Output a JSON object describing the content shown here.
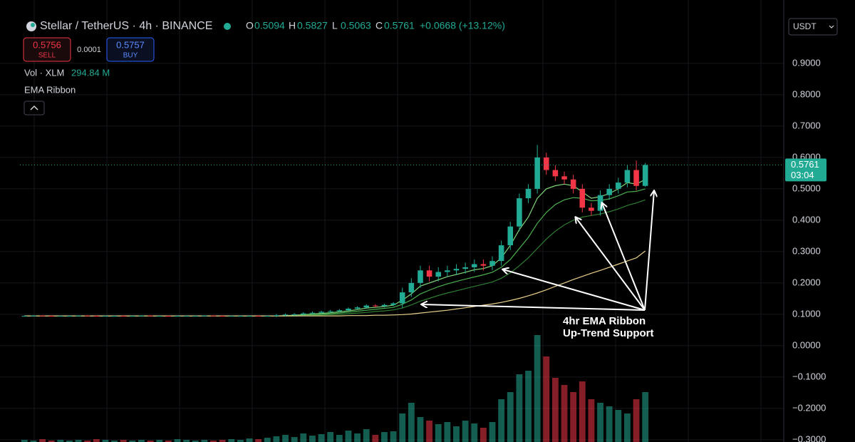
{
  "chart_data": {
    "type": "candlestick",
    "title": "Stellar / TetherUS · 4h · BINANCE",
    "ohlc_header": [
      {
        "label": "O",
        "value": 0.5094
      },
      {
        "label": "H",
        "value": 0.5827
      },
      {
        "label": "L",
        "value": 0.5063
      },
      {
        "label": "C",
        "value": 0.5761
      }
    ],
    "change": "+0.0668 (+13.12%)",
    "sell": {
      "price": 0.5756,
      "label": "SELL"
    },
    "spread": 0.0001,
    "buy": {
      "price": 0.5757,
      "label": "BUY"
    },
    "volume_name": "Vol · XLM",
    "volume_label": "294.84 M",
    "currency": "USDT",
    "countdown": "03:04",
    "up_color": "#22ab94",
    "down_color": "#f23645",
    "open": [
      0.095,
      0.095,
      0.096,
      0.095,
      0.094,
      0.095,
      0.095,
      0.096,
      0.095,
      0.094,
      0.095,
      0.095,
      0.094,
      0.095,
      0.096,
      0.095,
      0.095,
      0.094,
      0.095,
      0.095,
      0.095,
      0.096,
      0.095,
      0.094,
      0.095,
      0.095,
      0.095,
      0.094,
      0.095,
      0.097,
      0.099,
      0.1,
      0.103,
      0.105,
      0.108,
      0.11,
      0.113,
      0.118,
      0.122,
      0.128,
      0.126,
      0.13,
      0.135,
      0.17,
      0.2,
      0.24,
      0.22,
      0.235,
      0.24,
      0.245,
      0.25,
      0.26,
      0.255,
      0.27,
      0.32,
      0.38,
      0.47,
      0.5,
      0.6,
      0.56,
      0.54,
      0.53,
      0.5,
      0.44,
      0.43,
      0.48,
      0.5,
      0.52,
      0.56,
      0.5094
    ],
    "high": [
      0.096,
      0.097,
      0.097,
      0.096,
      0.096,
      0.096,
      0.097,
      0.097,
      0.096,
      0.096,
      0.096,
      0.096,
      0.096,
      0.097,
      0.097,
      0.096,
      0.096,
      0.096,
      0.096,
      0.096,
      0.097,
      0.097,
      0.096,
      0.096,
      0.096,
      0.096,
      0.096,
      0.096,
      0.101,
      0.103,
      0.104,
      0.107,
      0.109,
      0.112,
      0.114,
      0.117,
      0.122,
      0.126,
      0.132,
      0.132,
      0.134,
      0.139,
      0.185,
      0.215,
      0.255,
      0.255,
      0.25,
      0.255,
      0.26,
      0.265,
      0.275,
      0.275,
      0.285,
      0.335,
      0.395,
      0.485,
      0.515,
      0.64,
      0.615,
      0.575,
      0.555,
      0.545,
      0.515,
      0.455,
      0.495,
      0.515,
      0.535,
      0.575,
      0.59,
      0.5827
    ],
    "low": [
      0.094,
      0.094,
      0.094,
      0.093,
      0.093,
      0.094,
      0.094,
      0.094,
      0.093,
      0.093,
      0.094,
      0.093,
      0.093,
      0.094,
      0.094,
      0.094,
      0.093,
      0.093,
      0.094,
      0.094,
      0.094,
      0.094,
      0.093,
      0.093,
      0.094,
      0.094,
      0.093,
      0.093,
      0.091,
      0.093,
      0.095,
      0.096,
      0.099,
      0.101,
      0.104,
      0.106,
      0.109,
      0.114,
      0.118,
      0.122,
      0.122,
      0.126,
      0.12,
      0.155,
      0.185,
      0.205,
      0.205,
      0.22,
      0.225,
      0.23,
      0.235,
      0.24,
      0.24,
      0.255,
      0.305,
      0.365,
      0.455,
      0.485,
      0.545,
      0.525,
      0.515,
      0.485,
      0.425,
      0.415,
      0.415,
      0.465,
      0.485,
      0.505,
      0.495,
      0.5063
    ],
    "close": [
      0.095,
      0.096,
      0.095,
      0.094,
      0.095,
      0.095,
      0.096,
      0.095,
      0.094,
      0.095,
      0.095,
      0.094,
      0.095,
      0.096,
      0.095,
      0.095,
      0.094,
      0.095,
      0.095,
      0.095,
      0.096,
      0.095,
      0.094,
      0.095,
      0.095,
      0.095,
      0.094,
      0.095,
      0.097,
      0.099,
      0.1,
      0.103,
      0.105,
      0.108,
      0.11,
      0.113,
      0.118,
      0.122,
      0.128,
      0.126,
      0.13,
      0.135,
      0.17,
      0.2,
      0.24,
      0.22,
      0.235,
      0.24,
      0.245,
      0.25,
      0.26,
      0.255,
      0.27,
      0.32,
      0.38,
      0.47,
      0.5,
      0.6,
      0.56,
      0.54,
      0.53,
      0.5,
      0.44,
      0.43,
      0.48,
      0.5,
      0.52,
      0.56,
      0.5094,
      0.5761
    ],
    "volume": [
      3,
      2,
      4,
      2,
      3,
      2,
      3,
      2,
      4,
      3,
      2,
      3,
      2,
      3,
      2,
      3,
      2,
      4,
      3,
      2,
      3,
      2,
      3,
      4,
      3,
      5,
      4,
      6,
      8,
      10,
      7,
      12,
      9,
      11,
      14,
      10,
      16,
      12,
      18,
      10,
      14,
      15,
      40,
      55,
      35,
      30,
      25,
      28,
      22,
      30,
      26,
      20,
      28,
      60,
      70,
      95,
      100,
      150,
      120,
      90,
      80,
      70,
      85,
      60,
      55,
      50,
      45,
      40,
      60,
      70
    ],
    "ema_ribbon": {
      "name": "EMA Ribbon",
      "lines": [
        {
          "color": "#7fd67a",
          "values": [
            0.095,
            0.095,
            0.095,
            0.095,
            0.095,
            0.095,
            0.095,
            0.095,
            0.095,
            0.095,
            0.095,
            0.095,
            0.095,
            0.095,
            0.095,
            0.095,
            0.095,
            0.095,
            0.095,
            0.095,
            0.095,
            0.095,
            0.095,
            0.095,
            0.095,
            0.095,
            0.095,
            0.095,
            0.095,
            0.096,
            0.097,
            0.099,
            0.101,
            0.103,
            0.105,
            0.108,
            0.111,
            0.115,
            0.12,
            0.122,
            0.125,
            0.129,
            0.145,
            0.165,
            0.19,
            0.2,
            0.21,
            0.22,
            0.227,
            0.234,
            0.242,
            0.246,
            0.255,
            0.28,
            0.32,
            0.37,
            0.41,
            0.47,
            0.5,
            0.51,
            0.515,
            0.51,
            0.49,
            0.47,
            0.475,
            0.485,
            0.5,
            0.52,
            0.515,
            0.53
          ]
        },
        {
          "color": "#4caf50",
          "values": [
            0.095,
            0.095,
            0.095,
            0.095,
            0.095,
            0.095,
            0.095,
            0.095,
            0.095,
            0.095,
            0.095,
            0.095,
            0.095,
            0.095,
            0.095,
            0.095,
            0.095,
            0.095,
            0.095,
            0.095,
            0.095,
            0.095,
            0.095,
            0.095,
            0.095,
            0.095,
            0.095,
            0.095,
            0.095,
            0.095,
            0.096,
            0.097,
            0.099,
            0.1,
            0.102,
            0.104,
            0.107,
            0.11,
            0.113,
            0.116,
            0.119,
            0.122,
            0.132,
            0.146,
            0.165,
            0.177,
            0.188,
            0.197,
            0.205,
            0.212,
            0.219,
            0.226,
            0.234,
            0.25,
            0.275,
            0.31,
            0.345,
            0.39,
            0.425,
            0.45,
            0.465,
            0.472,
            0.47,
            0.462,
            0.463,
            0.468,
            0.478,
            0.49,
            0.492,
            0.5
          ]
        },
        {
          "color": "#2e7d32",
          "values": [
            0.095,
            0.095,
            0.095,
            0.095,
            0.095,
            0.095,
            0.095,
            0.095,
            0.095,
            0.095,
            0.095,
            0.095,
            0.095,
            0.095,
            0.095,
            0.095,
            0.095,
            0.095,
            0.095,
            0.095,
            0.095,
            0.095,
            0.095,
            0.095,
            0.095,
            0.095,
            0.095,
            0.095,
            0.095,
            0.095,
            0.095,
            0.096,
            0.097,
            0.098,
            0.099,
            0.1,
            0.102,
            0.104,
            0.106,
            0.109,
            0.111,
            0.114,
            0.12,
            0.13,
            0.142,
            0.151,
            0.16,
            0.168,
            0.175,
            0.182,
            0.189,
            0.196,
            0.203,
            0.215,
            0.232,
            0.255,
            0.28,
            0.31,
            0.34,
            0.365,
            0.385,
            0.4,
            0.41,
            0.415,
            0.42,
            0.427,
            0.436,
            0.447,
            0.455,
            0.465
          ]
        },
        {
          "color": "#e8cf8a",
          "values": [
            0.095,
            0.095,
            0.095,
            0.095,
            0.095,
            0.095,
            0.095,
            0.095,
            0.095,
            0.095,
            0.095,
            0.095,
            0.095,
            0.095,
            0.095,
            0.095,
            0.095,
            0.095,
            0.095,
            0.095,
            0.095,
            0.095,
            0.095,
            0.095,
            0.095,
            0.095,
            0.095,
            0.095,
            0.095,
            0.095,
            0.095,
            0.095,
            0.095,
            0.095,
            0.095,
            0.095,
            0.096,
            0.096,
            0.096,
            0.097,
            0.097,
            0.098,
            0.099,
            0.101,
            0.104,
            0.107,
            0.11,
            0.113,
            0.117,
            0.121,
            0.125,
            0.129,
            0.133,
            0.138,
            0.144,
            0.151,
            0.159,
            0.168,
            0.178,
            0.189,
            0.2,
            0.211,
            0.221,
            0.231,
            0.24,
            0.25,
            0.26,
            0.27,
            0.28,
            0.302
          ]
        }
      ]
    },
    "ylim": [
      -0.307,
      1.102
    ],
    "yticks": [
      {
        "value": 0.9,
        "label": "0.9000"
      },
      {
        "value": 0.8,
        "label": "0.8000"
      },
      {
        "value": 0.7,
        "label": "0.7000"
      },
      {
        "value": 0.6,
        "label": "0.6000"
      },
      {
        "value": 0.5,
        "label": "0.5000"
      },
      {
        "value": 0.4,
        "label": "0.4000"
      },
      {
        "value": 0.3,
        "label": "0.3000"
      },
      {
        "value": 0.2,
        "label": "0.2000"
      },
      {
        "value": 0.1,
        "label": "0.1000"
      },
      {
        "value": 0,
        "label": "0.0000"
      },
      {
        "value": -0.1,
        "label": "−0.1000"
      },
      {
        "value": -0.2,
        "label": "−0.2000"
      },
      {
        "value": -0.3,
        "label": "−0.3000"
      }
    ],
    "grid": true,
    "annotations": [
      "4hr EMA Ribbon",
      "Up-Trend Support"
    ]
  }
}
